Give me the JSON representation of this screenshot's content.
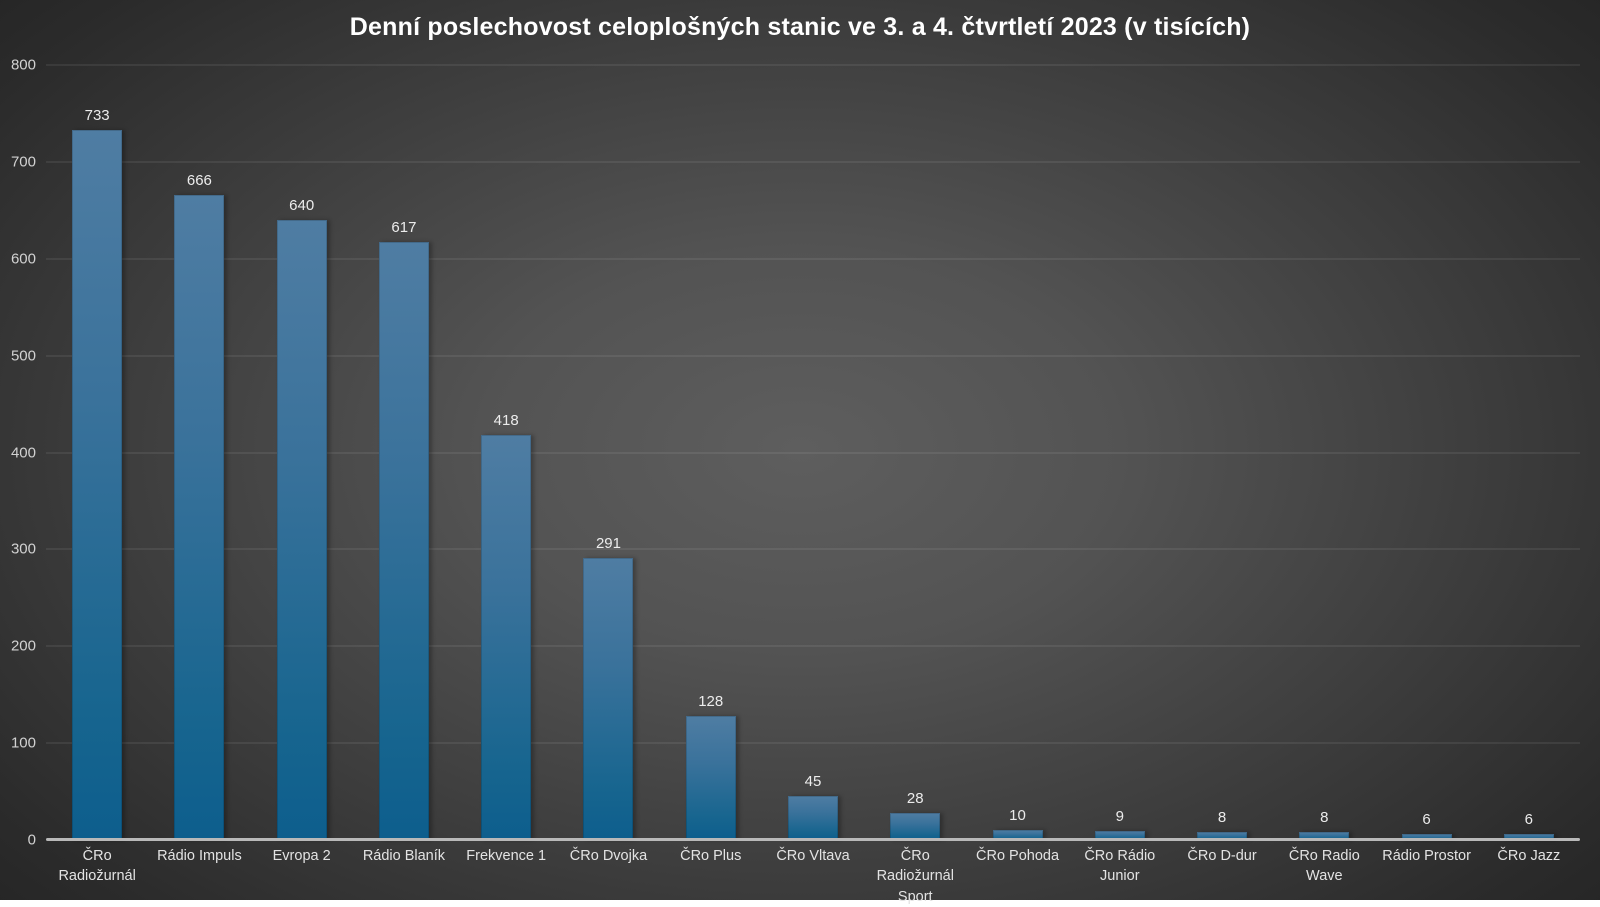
{
  "chart_data": {
    "type": "bar",
    "title": "Denní poslechovost celoplošných stanic ve 3. a 4. čtvrtletí 2023 (v tisících)",
    "categories": [
      "ČRo Radiožurnál",
      "Rádio Impuls",
      "Evropa 2",
      "Rádio Blaník",
      "Frekvence 1",
      "ČRo Dvojka",
      "ČRo Plus",
      "ČRo Vltava",
      "ČRo Radiožurnál Sport",
      "ČRo Pohoda",
      "ČRo Rádio Junior",
      "ČRo D-dur",
      "ČRo Radio Wave",
      "Rádio Prostor",
      "ČRo Jazz"
    ],
    "values": [
      733,
      666,
      640,
      617,
      418,
      291,
      128,
      45,
      28,
      10,
      9,
      8,
      8,
      6,
      6
    ],
    "xlabel": "",
    "ylabel": "",
    "ylim": [
      0,
      800
    ],
    "yticks": [
      0,
      100,
      200,
      300,
      400,
      500,
      600,
      700,
      800
    ],
    "grid": "horizontal",
    "legend": "none",
    "data_labels": "above-bars"
  },
  "colors": {
    "title": "#ffffff",
    "tick_label": "#d2d2d2",
    "value_label": "#ececec",
    "category_label": "#e3e3e3",
    "gridline": "rgba(255,255,255,0.14)",
    "axis_line": "#b9b9b9",
    "bar_top": "#4f7da3",
    "bar_bottom": "#0d5e8d",
    "background_center": "#5e5e5e",
    "background_edge": "#232323"
  }
}
